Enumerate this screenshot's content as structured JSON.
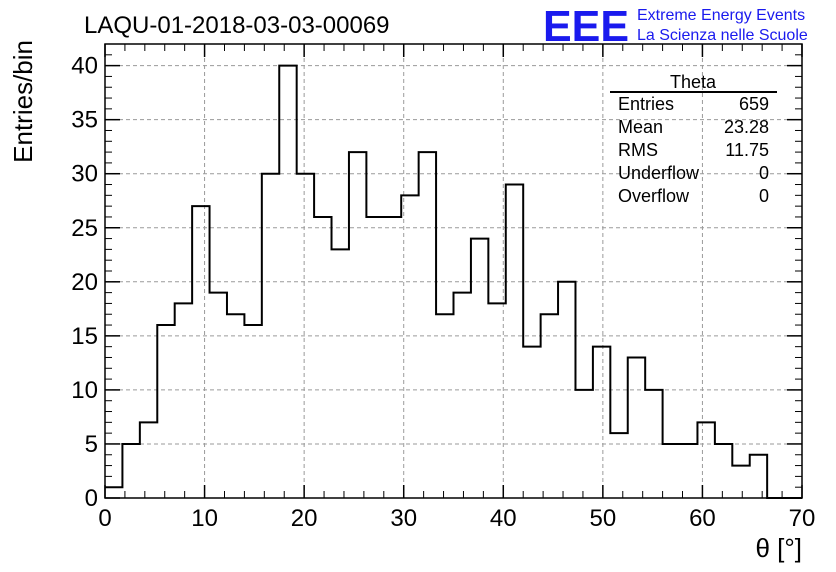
{
  "chart_data": {
    "type": "bar",
    "title": "LAQU-01-2018-03-03-00069",
    "xlabel": "θ [°]",
    "ylabel": "Entries/bin",
    "xlim": [
      0,
      70
    ],
    "ylim": [
      0,
      42
    ],
    "bin_width": 1.75,
    "grid": true,
    "x_ticks": [
      "0",
      "10",
      "20",
      "30",
      "40",
      "50",
      "60",
      "70"
    ],
    "y_ticks": [
      "0",
      "5",
      "10",
      "15",
      "20",
      "25",
      "30",
      "35",
      "40"
    ],
    "values": [
      1,
      5,
      7,
      16,
      18,
      27,
      19,
      17,
      16,
      30,
      40,
      30,
      26,
      23,
      32,
      26,
      26,
      28,
      32,
      17,
      19,
      24,
      18,
      29,
      14,
      17,
      20,
      10,
      14,
      6,
      13,
      10,
      5,
      5,
      7,
      5,
      3,
      4,
      0,
      0
    ],
    "stats_box": {
      "title": "Theta",
      "rows": [
        {
          "label": "Entries",
          "value": "659"
        },
        {
          "label": "Mean",
          "value": "23.28"
        },
        {
          "label": "RMS",
          "value": "11.75"
        },
        {
          "label": "Underflow",
          "value": "0"
        },
        {
          "label": "Overflow",
          "value": "0"
        }
      ]
    }
  },
  "logo": {
    "text": "EEE",
    "line1": "Extreme Energy Events",
    "line2": "La Scienza nelle Scuole",
    "color": "#1a1aee"
  }
}
